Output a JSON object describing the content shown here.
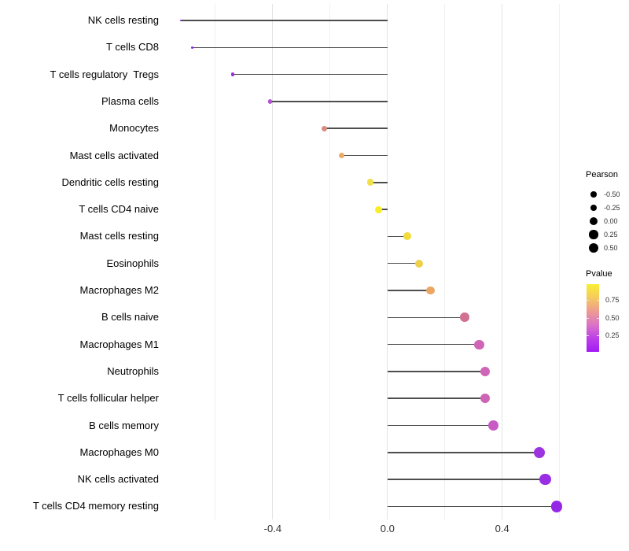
{
  "chart_data": {
    "type": "scatter",
    "variant": "horizontal-lollipop",
    "title": "",
    "xlabel": "",
    "ylabel": "",
    "xlim": [
      -0.79,
      0.66
    ],
    "baseline_x": 0.0,
    "grid": "vertical-only",
    "x_gridlines": [
      -0.6,
      -0.4,
      -0.2,
      0.0,
      0.2,
      0.4,
      0.6
    ],
    "x_major_ticks": [
      -0.4,
      0.0,
      0.4
    ],
    "x_tick_labels": [
      "-0.4",
      "0.0",
      "0.4"
    ],
    "categories": [
      "NK cells resting",
      "T cells CD8",
      "T cells regulatory  Tregs",
      "Plasma cells",
      "Monocytes",
      "Mast cells activated",
      "Dendritic cells resting",
      "T cells CD4 naive",
      "Mast cells resting",
      "Eosinophils",
      "Macrophages M2",
      "B cells naive",
      "Macrophages M1",
      "Neutrophils",
      "T cells follicular helper",
      "B cells memory",
      "Macrophages M0",
      "NK cells activated",
      "T cells CD4 memory resting"
    ],
    "points": [
      {
        "category": "NK cells resting",
        "pearson": -0.72,
        "pvalue_approx": 0.08,
        "color": "#8C2BE0"
      },
      {
        "category": "T cells CD8",
        "pearson": -0.68,
        "pvalue_approx": 0.07,
        "color": "#8A28DE"
      },
      {
        "category": "T cells regulatory  Tregs",
        "pearson": -0.54,
        "pvalue_approx": 0.1,
        "color": "#9A30DC"
      },
      {
        "category": "Plasma cells",
        "pearson": -0.41,
        "pvalue_approx": 0.17,
        "color": "#B350DA"
      },
      {
        "category": "Monocytes",
        "pearson": -0.22,
        "pvalue_approx": 0.55,
        "color": "#D98B80"
      },
      {
        "category": "Mast cells activated",
        "pearson": -0.16,
        "pvalue_approx": 0.65,
        "color": "#EBAA66"
      },
      {
        "category": "Dendritic cells resting",
        "pearson": -0.06,
        "pvalue_approx": 0.85,
        "color": "#F2E04A"
      },
      {
        "category": "T cells CD4 naive",
        "pearson": -0.03,
        "pvalue_approx": 0.93,
        "color": "#F8EE26"
      },
      {
        "category": "Mast cells resting",
        "pearson": 0.07,
        "pvalue_approx": 0.82,
        "color": "#F1DC3D"
      },
      {
        "category": "Eosinophils",
        "pearson": 0.11,
        "pvalue_approx": 0.77,
        "color": "#EDD04B"
      },
      {
        "category": "Macrophages M2",
        "pearson": 0.15,
        "pvalue_approx": 0.66,
        "color": "#E9A763"
      },
      {
        "category": "B cells naive",
        "pearson": 0.27,
        "pvalue_approx": 0.47,
        "color": "#D07290"
      },
      {
        "category": "Macrophages M1",
        "pearson": 0.32,
        "pvalue_approx": 0.34,
        "color": "#CE65B6"
      },
      {
        "category": "Neutrophils",
        "pearson": 0.34,
        "pvalue_approx": 0.33,
        "color": "#CE65B6"
      },
      {
        "category": "T cells follicular helper",
        "pearson": 0.34,
        "pvalue_approx": 0.33,
        "color": "#CE64B5"
      },
      {
        "category": "B cells memory",
        "pearson": 0.37,
        "pvalue_approx": 0.28,
        "color": "#C75AC3"
      },
      {
        "category": "Macrophages M0",
        "pearson": 0.53,
        "pvalue_approx": 0.11,
        "color": "#9C35E0"
      },
      {
        "category": "NK cells activated",
        "pearson": 0.55,
        "pvalue_approx": 0.1,
        "color": "#9A2EE3"
      },
      {
        "category": "T cells CD4 memory resting",
        "pearson": 0.59,
        "pvalue_approx": 0.08,
        "color": "#9428E6"
      }
    ],
    "legend": {
      "position": "right",
      "pearson_size": {
        "title": "Pearson",
        "items": [
          {
            "label": "-0.50",
            "value": -0.5
          },
          {
            "label": "-0.25",
            "value": -0.25
          },
          {
            "label": "0.00",
            "value": 0.0
          },
          {
            "label": "0.25",
            "value": 0.25
          },
          {
            "label": "0.50",
            "value": 0.5
          }
        ]
      },
      "pvalue_color": {
        "title": "Pvalue",
        "tick_labels": [
          "0.75",
          "0.50",
          "0.25"
        ],
        "tick_values": [
          0.75,
          0.5,
          0.25
        ],
        "range_top": 0.97,
        "range_bottom": 0.02,
        "gradient_top_to_bottom": [
          "#F9EE34",
          "#F6CA5E",
          "#ED9B93",
          "#DB74C6",
          "#BC40E8",
          "#A21BF4"
        ]
      }
    },
    "colors": {
      "stem": "#4d4d4d",
      "grid_major": "#e4e4e4",
      "grid_minor": "#f0f0f0",
      "axis_text": "#333333",
      "category_text": "#000000",
      "background": "#ffffff"
    }
  }
}
